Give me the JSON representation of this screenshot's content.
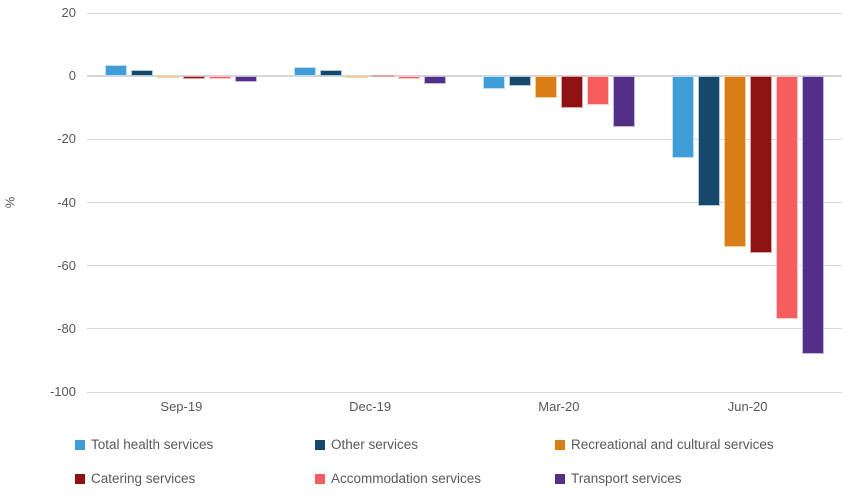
{
  "chart_data": {
    "type": "bar",
    "title": "",
    "xlabel": "",
    "ylabel": "%",
    "categories": [
      "Sep-19",
      "Dec-19",
      "Mar-20",
      "Jun-20"
    ],
    "series": [
      {
        "name": "Total health services",
        "color": "#3e9cd6",
        "border_color": "#c2dff2",
        "values": [
          3.5,
          3,
          -4,
          -26
        ]
      },
      {
        "name": "Other services",
        "color": "#15486b",
        "border_color": "#b3c8d6",
        "values": [
          2,
          2,
          -3,
          -41
        ]
      },
      {
        "name": "Recreational and cultural services",
        "color": "#d97d16",
        "border_color": "#f0cf9b",
        "values": [
          -0.5,
          -0.5,
          -7,
          -54
        ]
      },
      {
        "name": "Catering services",
        "color": "#8f1212",
        "border_color": "#dca6a6",
        "values": [
          -1,
          0.5,
          -10,
          -56
        ]
      },
      {
        "name": "Accommodation services",
        "color": "#f85d5d",
        "border_color": "#fccaca",
        "values": [
          -1,
          -1,
          -9,
          -77
        ]
      },
      {
        "name": "Transport services",
        "color": "#542f88",
        "border_color": "#c8b8df",
        "values": [
          -2,
          -2.5,
          -16,
          -88
        ]
      }
    ],
    "yticks": [
      20,
      0,
      -20,
      -40,
      -60,
      -80,
      -100
    ],
    "ylim": [
      -100,
      20
    ],
    "grid": true,
    "legend_position": "bottom",
    "colors": {
      "gridline": "#d9d9d9",
      "axis_text": "#595959",
      "background": "#ffffff"
    }
  }
}
